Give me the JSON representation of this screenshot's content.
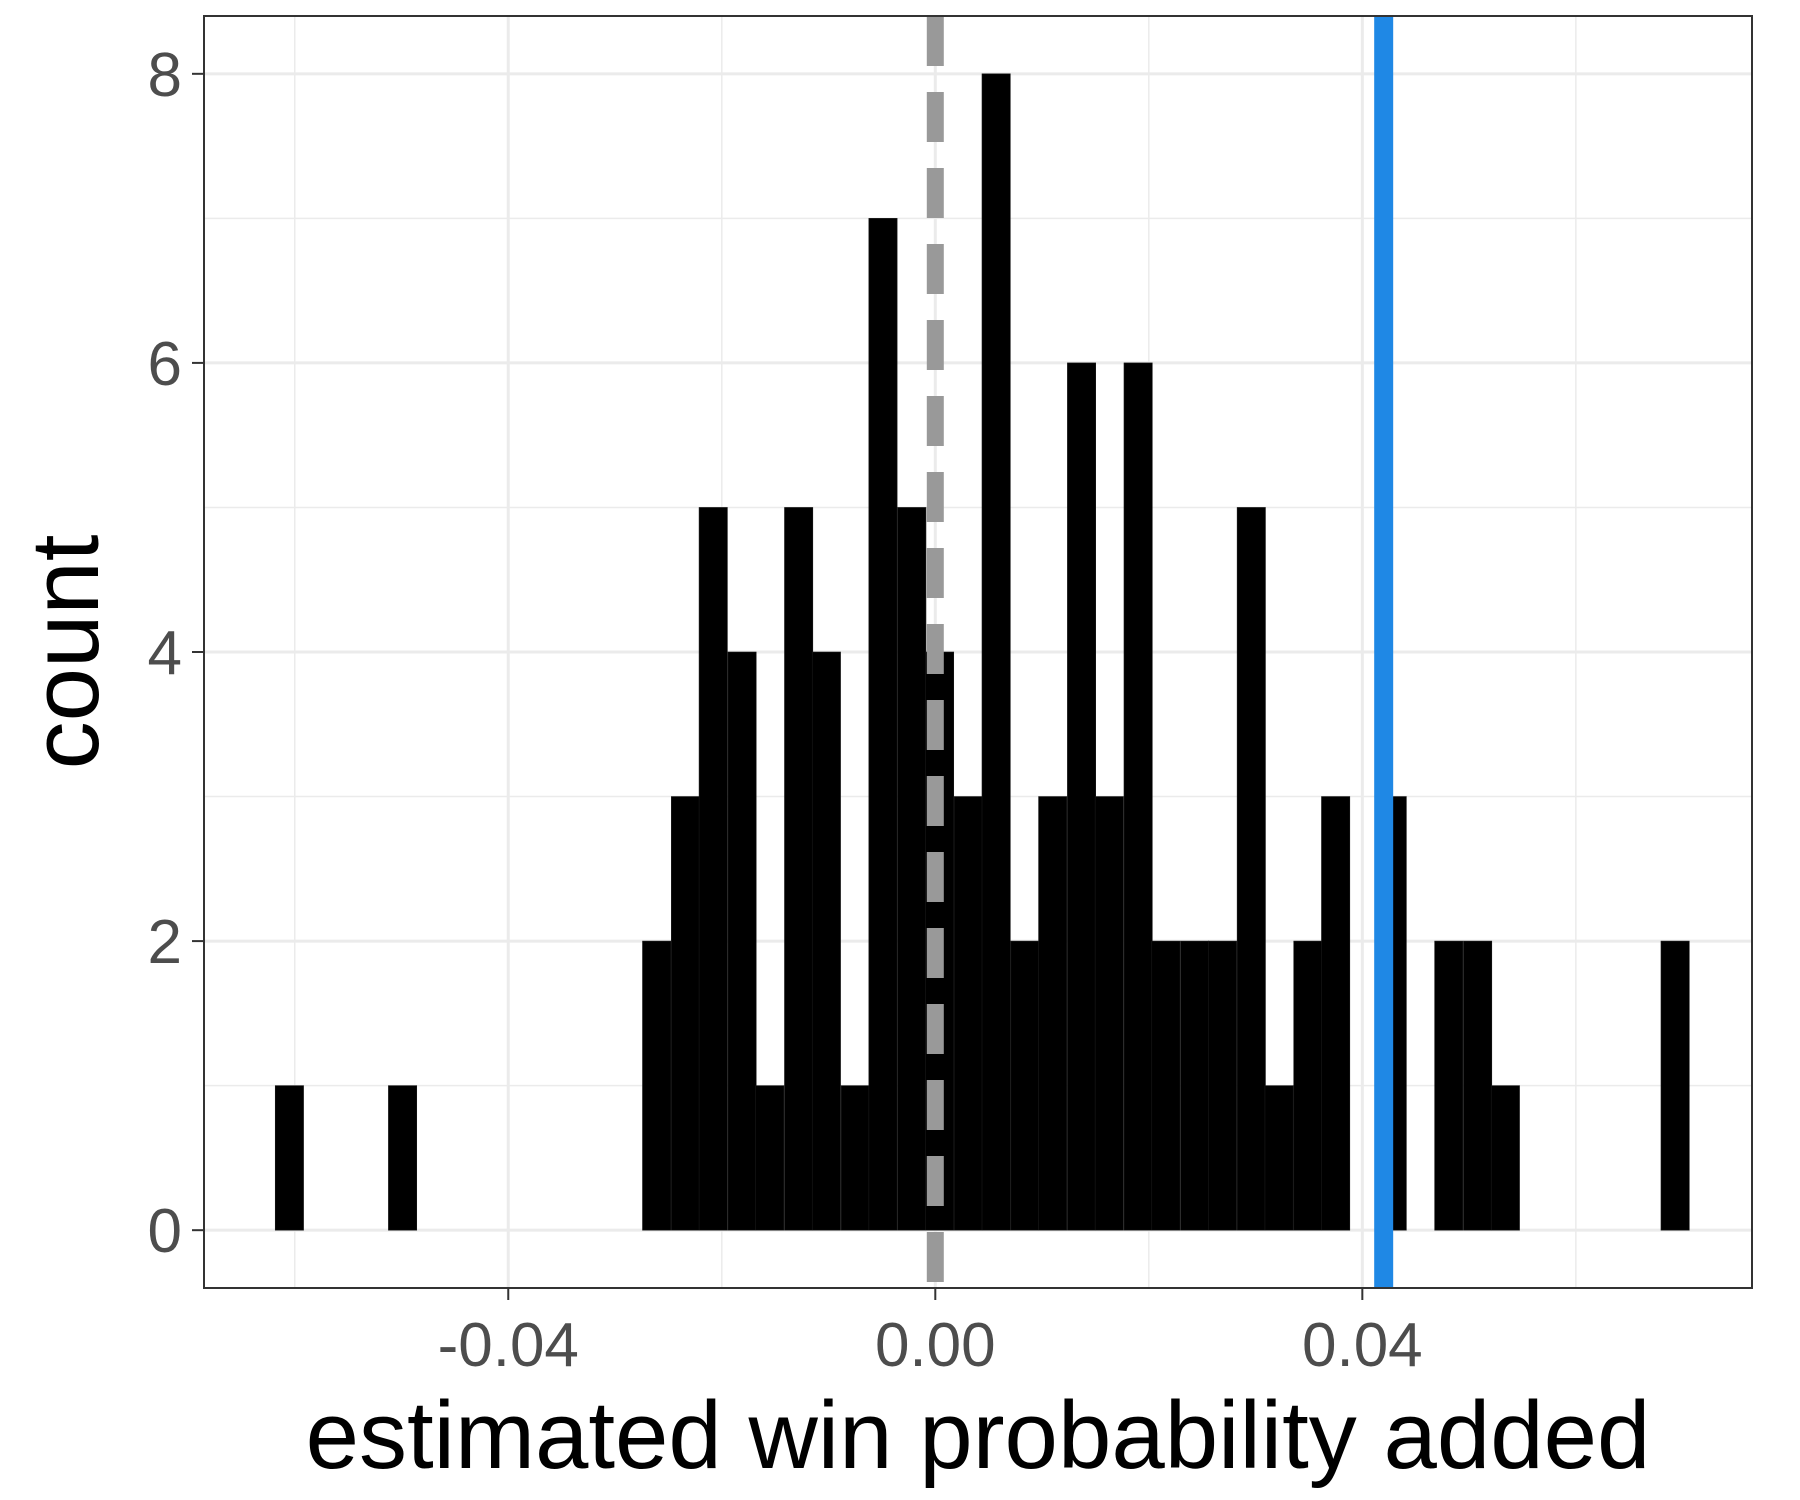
{
  "chart_data": {
    "type": "bar",
    "title": "",
    "xlabel": "estimated win probability added",
    "ylabel": "count",
    "xlim": [
      -0.0685,
      0.0765
    ],
    "ylim": [
      -0.4,
      8.4
    ],
    "x_ticks": [
      -0.04,
      0.0,
      0.04
    ],
    "x_tick_labels": [
      "-0.04",
      "0.00",
      "0.04"
    ],
    "y_ticks": [
      0,
      2,
      4,
      6,
      8
    ],
    "y_tick_labels": [
      "0",
      "2",
      "4",
      "6",
      "8"
    ],
    "grid": true,
    "bin_width": 0.00265,
    "bins": [
      {
        "x": -0.0605,
        "count": 1
      },
      {
        "x": -0.0499,
        "count": 1
      },
      {
        "x": -0.0261,
        "count": 2
      },
      {
        "x": -0.0234,
        "count": 3
      },
      {
        "x": -0.0208,
        "count": 5
      },
      {
        "x": -0.0181,
        "count": 4
      },
      {
        "x": -0.0155,
        "count": 1
      },
      {
        "x": -0.0128,
        "count": 5
      },
      {
        "x": -0.0102,
        "count": 4
      },
      {
        "x": -0.0075,
        "count": 1
      },
      {
        "x": -0.0049,
        "count": 7
      },
      {
        "x": -0.0022,
        "count": 5
      },
      {
        "x": 0.0004,
        "count": 4
      },
      {
        "x": 0.0031,
        "count": 3
      },
      {
        "x": 0.0057,
        "count": 8
      },
      {
        "x": 0.0084,
        "count": 2
      },
      {
        "x": 0.011,
        "count": 3
      },
      {
        "x": 0.0137,
        "count": 6
      },
      {
        "x": 0.0163,
        "count": 3
      },
      {
        "x": 0.019,
        "count": 6
      },
      {
        "x": 0.0216,
        "count": 2
      },
      {
        "x": 0.0243,
        "count": 2
      },
      {
        "x": 0.0269,
        "count": 2
      },
      {
        "x": 0.0296,
        "count": 5
      },
      {
        "x": 0.0322,
        "count": 1
      },
      {
        "x": 0.0349,
        "count": 2
      },
      {
        "x": 0.0375,
        "count": 3
      },
      {
        "x": 0.0428,
        "count": 3
      },
      {
        "x": 0.0481,
        "count": 2
      },
      {
        "x": 0.0508,
        "count": 2
      },
      {
        "x": 0.0534,
        "count": 1
      },
      {
        "x": 0.0693,
        "count": 2
      }
    ],
    "reference_lines": [
      {
        "x": 0.0,
        "style": "dashed",
        "color": "#999999"
      },
      {
        "x": 0.042,
        "style": "solid",
        "color": "#1f88e5"
      }
    ],
    "colors": {
      "bars": "#000000",
      "panel_border": "#333333",
      "grid": "#ebebeb"
    }
  }
}
